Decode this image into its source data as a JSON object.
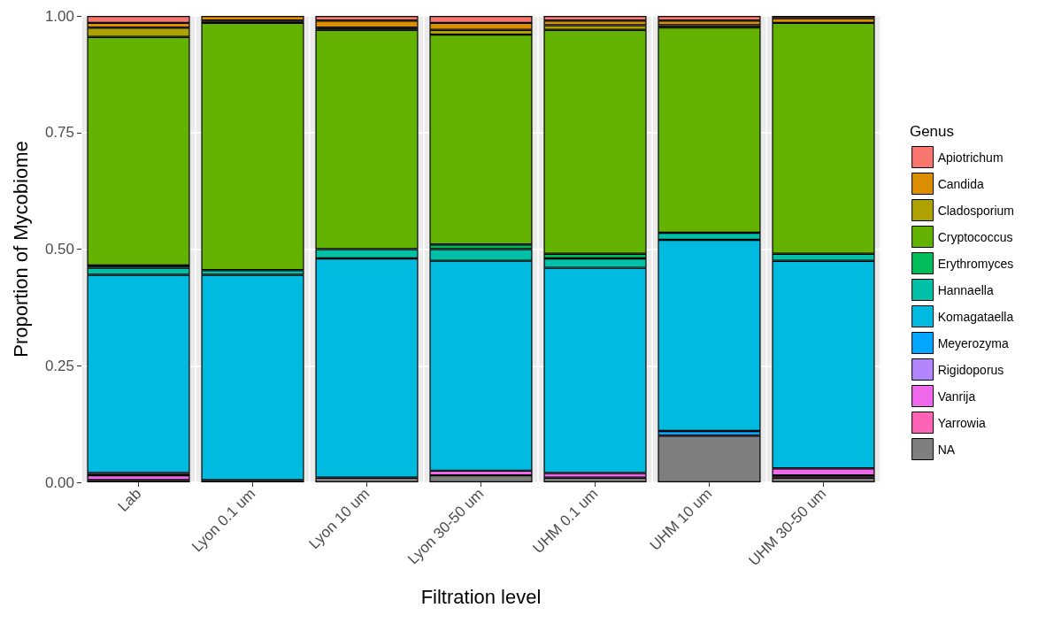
{
  "chart_data": {
    "type": "bar",
    "stacked": true,
    "xlabel": "Filtration level",
    "ylabel": "Proportion of Mycobiome",
    "legend_title": "Genus",
    "legend": "right",
    "grid": true,
    "categories": [
      "Lab",
      "Lyon 0.1 um",
      "Lyon 10 um",
      "Lyon 30-50 um",
      "UHM 0.1 um",
      "UHM 10 um",
      "UHM 30-50 um"
    ],
    "ylim": [
      0,
      1
    ],
    "yticks": [
      {
        "value": 0,
        "label": "0.00"
      },
      {
        "value": 0.25,
        "label": "0.25"
      },
      {
        "value": 0.5,
        "label": "0.50"
      },
      {
        "value": 0.75,
        "label": "0.75"
      },
      {
        "value": 1,
        "label": "1.00"
      }
    ],
    "series": [
      {
        "name": "NA",
        "color": "#7f7f7f",
        "values": [
          0.005,
          0.005,
          0.01,
          0.015,
          0.01,
          0.1,
          0.01
        ]
      },
      {
        "name": "Yarrowia",
        "color": "#ff63b6",
        "values": [
          null,
          null,
          null,
          null,
          null,
          null,
          0.005
        ]
      },
      {
        "name": "Vanrija",
        "color": "#ef67eb",
        "values": [
          0.01,
          null,
          null,
          0.01,
          0.01,
          null,
          0.015
        ]
      },
      {
        "name": "Rigidoporus",
        "color": "#b385ff",
        "values": [
          0.005,
          null,
          null,
          null,
          null,
          null,
          null
        ]
      },
      {
        "name": "Meyerozyma",
        "color": "#00a6ff",
        "values": [
          null,
          null,
          null,
          null,
          null,
          0.01,
          null
        ]
      },
      {
        "name": "Komagataella",
        "color": "#00badf",
        "values": [
          0.425,
          0.44,
          0.47,
          0.45,
          0.44,
          0.41,
          0.445
        ]
      },
      {
        "name": "Hannaella",
        "color": "#00c1a7",
        "values": [
          0.015,
          0.01,
          0.02,
          0.025,
          0.02,
          0.015,
          0.015
        ]
      },
      {
        "name": "Erythromyces",
        "color": "#00bd5c",
        "values": [
          0.005,
          null,
          null,
          0.01,
          0.01,
          null,
          null
        ]
      },
      {
        "name": "Cryptococcus",
        "color": "#64b200",
        "values": [
          0.49,
          0.53,
          0.47,
          0.45,
          0.48,
          0.44,
          0.495
        ]
      },
      {
        "name": "Cladosporium",
        "color": "#aea200",
        "values": [
          0.02,
          0.005,
          0.005,
          0.01,
          0.01,
          0.005,
          null
        ]
      },
      {
        "name": "Candida",
        "color": "#db8e00",
        "values": [
          0.01,
          0.01,
          0.015,
          0.015,
          0.01,
          0.01,
          0.01
        ]
      },
      {
        "name": "Apiotrichum",
        "color": "#f8766d",
        "values": [
          0.015,
          null,
          0.01,
          0.015,
          0.01,
          0.01,
          0.005
        ]
      }
    ]
  }
}
